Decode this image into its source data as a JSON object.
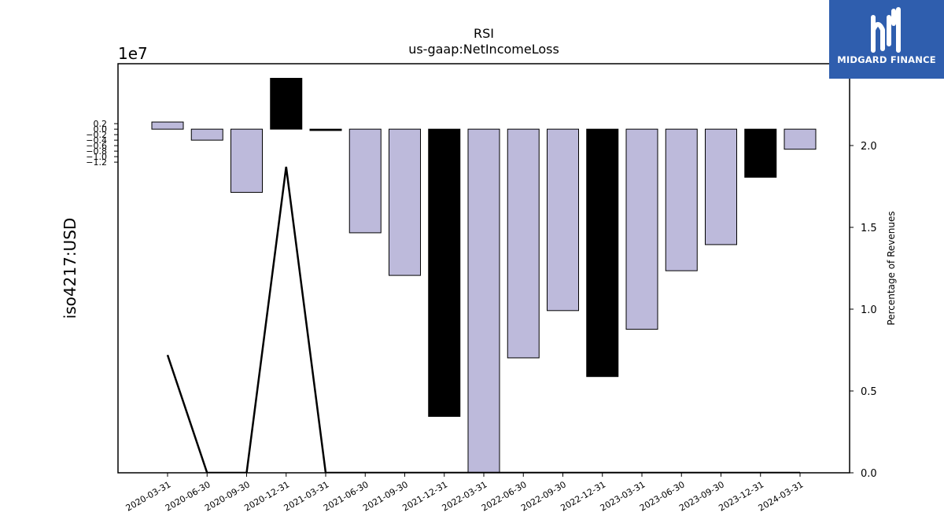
{
  "chart_data": {
    "type": "bar",
    "title": "RSI",
    "subtitle": "us-gaap:NetIncomeLoss",
    "ylabel": "iso4217:USD",
    "y_offset_label": "1e7",
    "y2label": "Percentage of Revenues",
    "categories": [
      "2020-03-31",
      "2020-06-30",
      "2020-09-30",
      "2020-12-31",
      "2021-03-31",
      "2021-06-30",
      "2021-09-30",
      "2021-12-31",
      "2022-03-31",
      "2022-06-30",
      "2022-09-30",
      "2022-12-31",
      "2023-03-31",
      "2023-06-30",
      "2023-09-30",
      "2023-12-31",
      "2024-03-31"
    ],
    "values": [
      2600000,
      -4000000,
      -23000000,
      18500000,
      -500000,
      -37700000,
      -53200000,
      -104500000,
      -125500000,
      -83200000,
      -66000000,
      -90000000,
      -72800000,
      -51500000,
      -42000000,
      -17500000,
      -7300000
    ],
    "bar_colors": [
      "#bdbadb",
      "#bdbadb",
      "#bdbadb",
      "#000000",
      "#000000",
      "#bdbadb",
      "#bdbadb",
      "#000000",
      "#bdbadb",
      "#bdbadb",
      "#bdbadb",
      "#000000",
      "#bdbadb",
      "#bdbadb",
      "#bdbadb",
      "#000000",
      "#bdbadb"
    ],
    "line_series": {
      "values": [
        0.72,
        0.0,
        0.0,
        1.87,
        0.0,
        0.0,
        0.0,
        0.0,
        0.0,
        0.0,
        0.0,
        0.0,
        0.0,
        0.0,
        0.0,
        0.0,
        0.0
      ],
      "color": "#000000"
    },
    "ylim": [
      -125000000,
      23800000
    ],
    "yticks": [
      2000000,
      0,
      -2000000,
      -4000000,
      -6000000,
      -8000000,
      -10000000,
      -12000000
    ],
    "ytick_labels": [
      "0.2",
      "0.0",
      "−0.2",
      "−0.4",
      "−0.6",
      "−0.8",
      "−1.0",
      "−1.2"
    ],
    "y2lim": [
      0,
      2.5
    ],
    "y2ticks": [
      0,
      0.5,
      1.0,
      1.5,
      2.0
    ],
    "y2tick_labels": [
      "0.0",
      "0.5",
      "1.0",
      "1.5",
      "2.0"
    ],
    "grid": false,
    "legend": "none"
  },
  "logo": {
    "text": "MIDGARD FINANCE",
    "color": "#2f5eae"
  }
}
